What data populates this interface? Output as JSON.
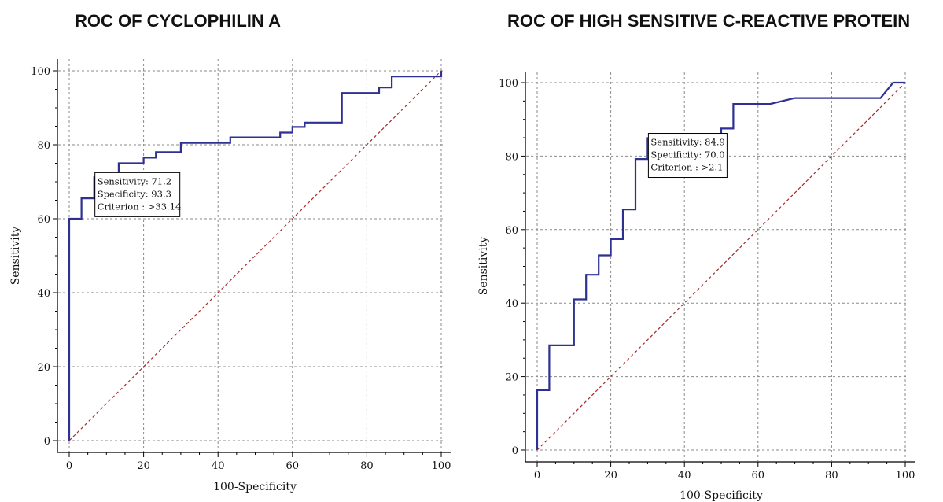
{
  "chart_data": [
    {
      "type": "line",
      "title": "ROC OF CYCLOPHILIN A",
      "xlabel": "100-Specificity",
      "ylabel": "Sensitivity",
      "xlim": [
        0,
        100
      ],
      "ylim": [
        0,
        100
      ],
      "x_ticks": [
        0,
        20,
        40,
        60,
        80,
        100
      ],
      "y_ticks": [
        0,
        20,
        40,
        60,
        80,
        100
      ],
      "grid": true,
      "series": [
        {
          "color": "#2e3192",
          "style": "solid",
          "x": [
            0,
            0,
            3.3,
            3.3,
            6.7,
            6.7,
            13.3,
            13.3,
            20,
            20,
            23.3,
            23.3,
            30,
            30,
            43.3,
            43.3,
            56.7,
            56.7,
            60,
            60,
            63.3,
            63.3,
            66.7,
            66.7,
            73.3,
            73.3,
            83.3,
            83.3,
            86.7,
            86.7,
            100,
            100
          ],
          "y": [
            0,
            60,
            60,
            65.5,
            65.5,
            71.2,
            71.2,
            75,
            75,
            76.5,
            76.5,
            78,
            78,
            80.5,
            80.5,
            82,
            82,
            83.3,
            83.3,
            84.8,
            84.8,
            86,
            86,
            86,
            86,
            94,
            94,
            95.5,
            95.5,
            98.5,
            98.5,
            100
          ]
        },
        {
          "color": "#a52a2a",
          "style": "dashed",
          "x": [
            0,
            100
          ],
          "y": [
            0,
            100
          ]
        }
      ],
      "annotation": {
        "lines": [
          "Sensitivity: 71.2",
          "Specificity: 93.3",
          "Criterion : >33.14"
        ],
        "x": 6.7,
        "y": 71.2
      }
    },
    {
      "type": "line",
      "title": "ROC OF HIGH SENSITIVE C-REACTIVE PROTEIN",
      "xlabel": "100-Specificity",
      "ylabel": "Sensitivity",
      "xlim": [
        0,
        100
      ],
      "ylim": [
        0,
        100
      ],
      "x_ticks": [
        0,
        20,
        40,
        60,
        80,
        100
      ],
      "y_ticks": [
        0,
        20,
        40,
        60,
        80,
        100
      ],
      "grid": true,
      "series": [
        {
          "color": "#2e3192",
          "style": "solid",
          "x": [
            0,
            0,
            3.3,
            3.3,
            10,
            10,
            13.3,
            13.3,
            16.7,
            16.7,
            20,
            20,
            23.3,
            23.3,
            26.7,
            26.7,
            30,
            30,
            36.7,
            36.7,
            50,
            50,
            53.3,
            53.3,
            63.3,
            70,
            93.3,
            96.7,
            100
          ],
          "y": [
            0,
            16.3,
            16.3,
            28.5,
            28.5,
            41,
            41,
            47.7,
            47.7,
            53,
            53,
            57.4,
            57.4,
            65.5,
            65.5,
            79.2,
            79.2,
            84.9,
            84.9,
            86,
            86,
            87.5,
            87.5,
            94.2,
            94.2,
            95.8,
            95.8,
            100,
            100
          ]
        },
        {
          "color": "#a52a2a",
          "style": "dashed",
          "x": [
            0,
            100
          ],
          "y": [
            0,
            100
          ]
        }
      ],
      "annotation": {
        "lines": [
          "Sensitivity: 84.9",
          "Specificity: 70.0",
          "Criterion : >2.1"
        ],
        "x": 30,
        "y": 84.9
      }
    }
  ]
}
